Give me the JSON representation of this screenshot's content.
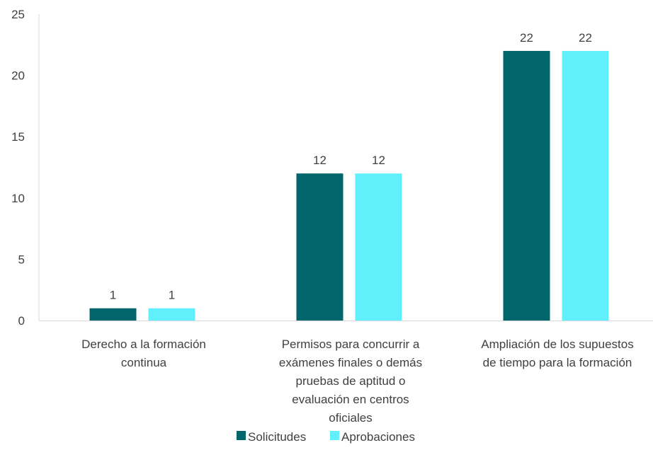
{
  "chart_data": {
    "type": "bar",
    "categories": [
      [
        "Derecho a la formación",
        "continua"
      ],
      [
        "Permisos para concurrir a",
        "exámenes finales o demás",
        "pruebas de aptitud o",
        "evaluación en centros",
        "oficiales"
      ],
      [
        "Ampliación de los supuestos",
        "de tiempo para la formación"
      ]
    ],
    "series": [
      {
        "name": "Solicitudes",
        "values": [
          1,
          12,
          22
        ],
        "color": "#00666b"
      },
      {
        "name": "Aprobaciones",
        "values": [
          1,
          12,
          22
        ],
        "color": "#5ff0fb"
      }
    ],
    "ylim": [
      0,
      25
    ],
    "yticks": [
      0,
      5,
      10,
      15,
      20,
      25
    ],
    "data_labels": true,
    "grid": false,
    "legend_position": "bottom"
  }
}
